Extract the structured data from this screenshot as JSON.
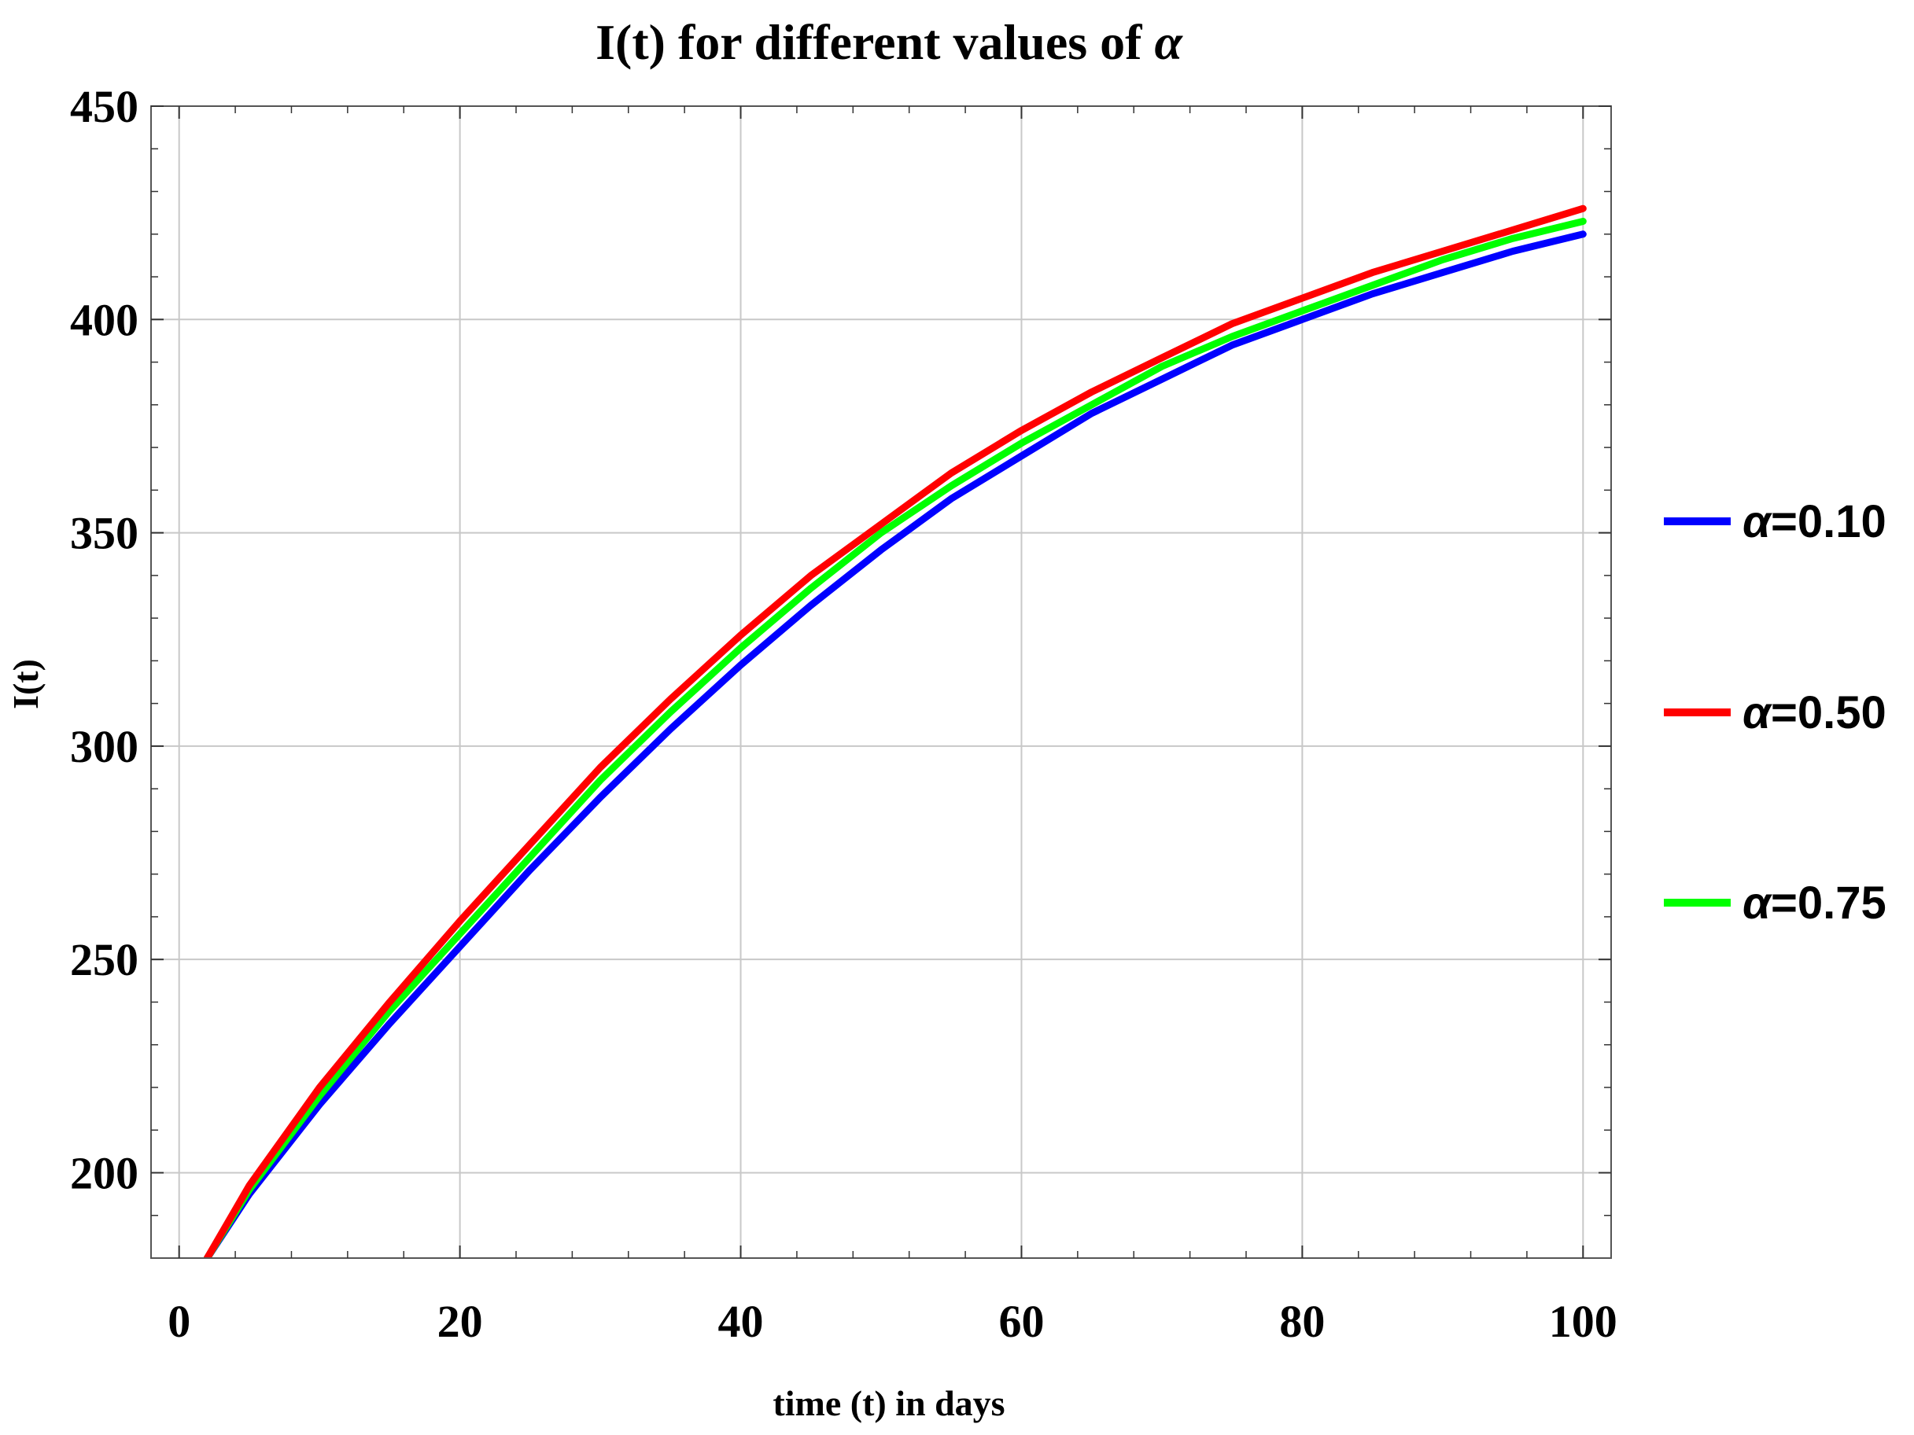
{
  "chart_data": {
    "type": "line",
    "title_prefix": "I(t) for different values of ",
    "title_symbol": "α",
    "xlabel": "time (t) in days",
    "ylabel": "I(t)",
    "xlim": [
      -2,
      102
    ],
    "ylim": [
      180,
      450
    ],
    "xticks": [
      0,
      20,
      40,
      60,
      80,
      100
    ],
    "yticks": [
      200,
      250,
      300,
      350,
      400,
      450
    ],
    "grid": true,
    "legend_position": "right",
    "x": [
      2,
      5,
      10,
      15,
      20,
      25,
      30,
      35,
      40,
      45,
      50,
      55,
      60,
      65,
      70,
      75,
      80,
      85,
      90,
      95,
      100
    ],
    "series": [
      {
        "name": "α=0.10",
        "legend_symbol": "α",
        "legend_value": "=0.10",
        "color": "#0000ff",
        "values": [
          180,
          195,
          216,
          235,
          253,
          271,
          288,
          304,
          319,
          333,
          346,
          358,
          368,
          378,
          386,
          394,
          400,
          406,
          411,
          416,
          420
        ]
      },
      {
        "name": "α=0.50",
        "legend_symbol": "α",
        "legend_value": "=0.50",
        "color": "#ff0000",
        "values": [
          180,
          197,
          220,
          240,
          259,
          277,
          295,
          311,
          326,
          340,
          352,
          364,
          374,
          383,
          391,
          399,
          405,
          411,
          416,
          421,
          426
        ]
      },
      {
        "name": "α=0.75",
        "legend_symbol": "α",
        "legend_value": "=0.75",
        "color": "#00ff00",
        "values": [
          180,
          196,
          218,
          238,
          256,
          274,
          292,
          308,
          323,
          337,
          350,
          361,
          371,
          380,
          389,
          396,
          402,
          408,
          414,
          419,
          423
        ]
      }
    ]
  }
}
